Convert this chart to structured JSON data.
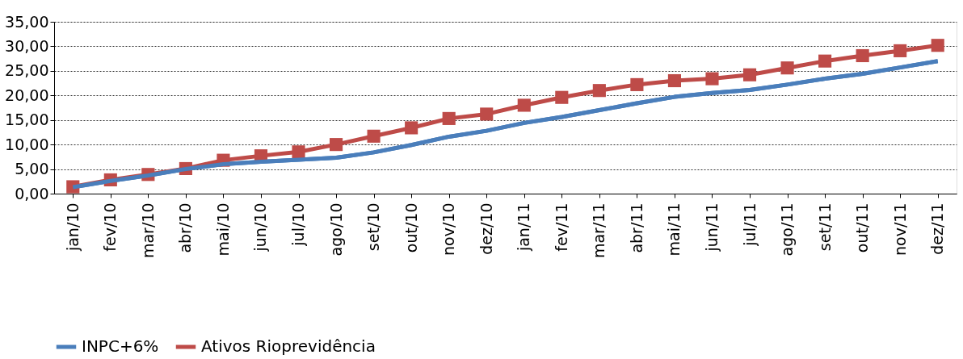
{
  "chart_data": {
    "type": "line",
    "categories": [
      "jan/10",
      "fev/10",
      "mar/10",
      "abr/10",
      "mai/10",
      "jun/10",
      "jul/10",
      "ago/10",
      "set/10",
      "out/10",
      "nov/10",
      "dez/10",
      "jan/11",
      "fev/11",
      "mar/11",
      "abr/11",
      "mai/11",
      "jun/11",
      "jul/11",
      "ago/11",
      "set/11",
      "out/11",
      "nov/11",
      "dez/11"
    ],
    "series": [
      {
        "name": "INPC+6%",
        "color": "#4a7ebb",
        "marker": "none",
        "values": [
          1.3,
          2.6,
          3.7,
          5.0,
          6.0,
          6.5,
          6.9,
          7.3,
          8.4,
          9.9,
          11.6,
          12.8,
          14.4,
          15.6,
          17.0,
          18.4,
          19.7,
          20.5,
          21.1,
          22.2,
          23.4,
          24.4,
          25.7,
          27.0
        ]
      },
      {
        "name": "Ativos Rioprevidência",
        "color": "#be4b48",
        "marker": "square",
        "values": [
          1.4,
          2.8,
          3.9,
          5.1,
          6.8,
          7.7,
          8.5,
          10.0,
          11.7,
          13.4,
          15.3,
          16.2,
          18.0,
          19.6,
          21.0,
          22.2,
          23.0,
          23.4,
          24.2,
          25.6,
          27.0,
          28.1,
          29.1,
          30.2
        ]
      }
    ],
    "ylim": [
      0,
      35
    ],
    "yticks": [
      {
        "value": 0,
        "label": "0,00"
      },
      {
        "value": 5,
        "label": "5,00"
      },
      {
        "value": 10,
        "label": "10,00"
      },
      {
        "value": 15,
        "label": "15,00"
      },
      {
        "value": 20,
        "label": "20,00"
      },
      {
        "value": 25,
        "label": "25,00"
      },
      {
        "value": 30,
        "label": "30,00"
      },
      {
        "value": 35,
        "label": "35,00"
      }
    ],
    "grid": "y",
    "legend": "bottom",
    "line_style": "solid"
  }
}
